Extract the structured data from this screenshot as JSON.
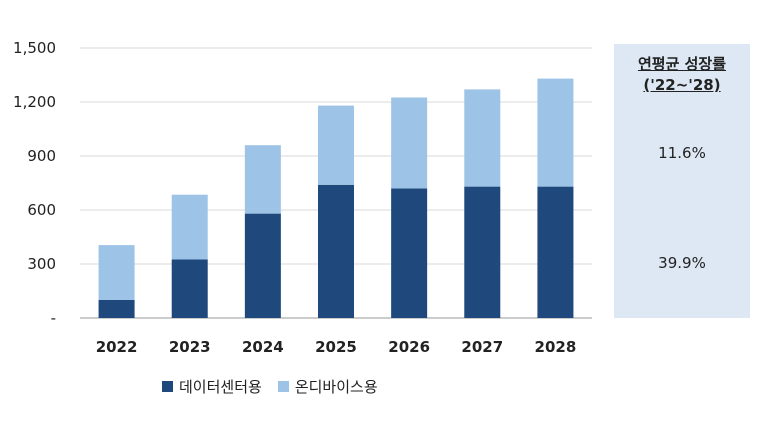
{
  "chart_data": {
    "type": "bar",
    "stacked": true,
    "categories": [
      "2022",
      "2023",
      "2024",
      "2025",
      "2026",
      "2027",
      "2028"
    ],
    "series": [
      {
        "name": "데이터센터용",
        "color": "#1f497d",
        "values": [
          100,
          325,
          580,
          740,
          720,
          730,
          730
        ]
      },
      {
        "name": "온디바이스용",
        "color": "#9dc3e6",
        "values": [
          305,
          360,
          380,
          440,
          505,
          540,
          600
        ]
      }
    ],
    "yticks": [
      "-",
      "300",
      "600",
      "900",
      "1,200",
      "1,500"
    ],
    "ylim": [
      0,
      1500
    ],
    "grid": true,
    "legend_position": "bottom"
  },
  "cagr_panel": {
    "title_line1": "연평균 성장률",
    "title_line2": "('22~'28)",
    "onDevice_rate": "11.6%",
    "datacenter_rate": "39.9%",
    "background": "#dde8f4"
  }
}
